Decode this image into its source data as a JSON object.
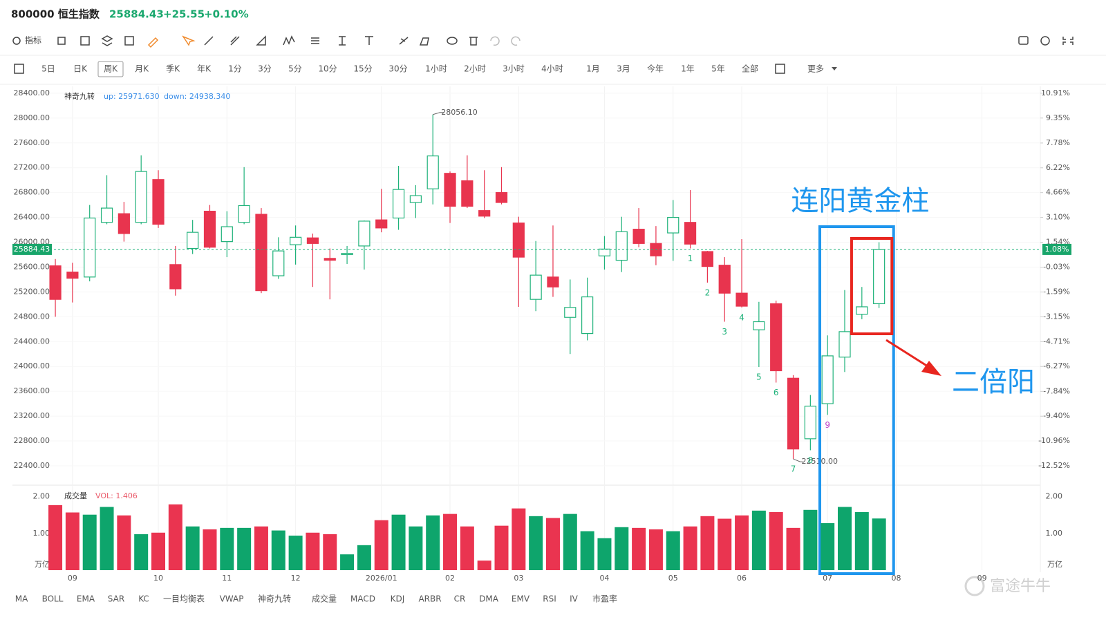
{
  "header": {
    "symbol": "800000 恒生指数",
    "price": "25884.43",
    "change": "+25.55",
    "change_pct": "+0.10%"
  },
  "toolbar": {
    "indicator_button": "指标"
  },
  "timeframes": [
    {
      "label": "5日"
    },
    {
      "label": "日K"
    },
    {
      "label": "周K",
      "active": true
    },
    {
      "label": "月K"
    },
    {
      "label": "季K"
    },
    {
      "label": "年K"
    },
    {
      "label": "1分"
    },
    {
      "label": "3分"
    },
    {
      "label": "5分"
    },
    {
      "label": "10分"
    },
    {
      "label": "15分"
    },
    {
      "label": "30分"
    },
    {
      "label": "1小时"
    },
    {
      "label": "2小时"
    },
    {
      "label": "3小时"
    },
    {
      "label": "4小时"
    },
    {
      "label": "1月"
    },
    {
      "label": "3月"
    },
    {
      "label": "今年"
    },
    {
      "label": "1年"
    },
    {
      "label": "5年"
    },
    {
      "label": "全部"
    }
  ],
  "more_button": "更多",
  "indicators": [
    {
      "label": "MA"
    },
    {
      "label": "BOLL"
    },
    {
      "label": "EMA"
    },
    {
      "label": "SAR"
    },
    {
      "label": "KC"
    },
    {
      "label": "一目均衡表"
    },
    {
      "label": "VWAP"
    },
    {
      "label": "神奇九转",
      "active": true
    },
    {
      "label": "成交量",
      "active": true
    },
    {
      "label": "MACD"
    },
    {
      "label": "KDJ"
    },
    {
      "label": "ARBR"
    },
    {
      "label": "CR"
    },
    {
      "label": "DMA"
    },
    {
      "label": "EMV"
    },
    {
      "label": "RSI"
    },
    {
      "label": "IV"
    },
    {
      "label": "市盈率"
    }
  ],
  "watermark": "富途牛牛",
  "chart_data": [
    {
      "type": "candlestick",
      "indicator_name": "神奇九转",
      "indicator_values": [
        "up: 25971.630",
        "down: 24938.340"
      ],
      "open": [
        25620,
        25520,
        25440,
        26320,
        26460,
        26320,
        27010,
        25640,
        25900,
        26500,
        26010,
        26320,
        26450,
        25460,
        25960,
        26070,
        25740,
        25800,
        25940,
        26360,
        26390,
        26640,
        26860,
        27110,
        26990,
        26510,
        26800,
        26310,
        25080,
        25440,
        24790,
        24530,
        25780,
        25710,
        26210,
        25980,
        26150,
        26320,
        25850,
        25630,
        25180,
        24590,
        25010,
        23810,
        22835,
        23400,
        24150,
        24840,
        25010
      ],
      "high": [
        25730,
        25670,
        26600,
        27080,
        26650,
        27400,
        27160,
        25940,
        26360,
        26600,
        26500,
        27210,
        26550,
        26080,
        26270,
        26140,
        25900,
        25940,
        26350,
        26860,
        27230,
        26920,
        28056.1,
        27140,
        27400,
        27160,
        27210,
        26410,
        26020,
        26270,
        25400,
        25430,
        26100,
        26410,
        26550,
        26260,
        26680,
        26840,
        25860,
        25760,
        26050,
        25040,
        25060,
        23860,
        23540,
        24500,
        25230,
        25280,
        26000
      ],
      "low": [
        24800,
        25030,
        25370,
        26290,
        26010,
        26290,
        26230,
        25140,
        25810,
        25900,
        25760,
        26290,
        25180,
        25410,
        25640,
        25280,
        25080,
        25650,
        25560,
        26160,
        26200,
        26390,
        26610,
        26310,
        26550,
        26390,
        26610,
        24960,
        24890,
        25120,
        24200,
        24420,
        25560,
        25520,
        25920,
        25630,
        25700,
        25900,
        25350,
        24720,
        24950,
        23990,
        23740,
        22510,
        22650,
        23220,
        23910,
        24760,
        24940
      ],
      "close": [
        25080,
        25420,
        26390,
        26550,
        26140,
        27140,
        26290,
        25250,
        26160,
        25920,
        26250,
        26590,
        25220,
        25860,
        26080,
        25980,
        25710,
        25820,
        26340,
        26230,
        26850,
        26750,
        27390,
        26580,
        26580,
        26420,
        26640,
        25760,
        25470,
        25280,
        24950,
        25120,
        25890,
        26170,
        25980,
        25780,
        26400,
        25970,
        25610,
        25180,
        24970,
        24720,
        23930,
        22670,
        23360,
        24170,
        24560,
        24960,
        25884.43
      ],
      "up_color": "#1fb27a",
      "down_color": "#e8344e",
      "xlim": [
        -2.5,
        57.4
      ],
      "ylim": [
        22110,
        28510
      ],
      "yticks": [
        {
          "value": 28400,
          "label": "28400.00"
        },
        {
          "value": 28000,
          "label": "28000.00"
        },
        {
          "value": 27600,
          "label": "27600.00"
        },
        {
          "value": 27200,
          "label": "27200.00"
        },
        {
          "value": 26800,
          "label": "26800.00"
        },
        {
          "value": 26400,
          "label": "26400.00"
        },
        {
          "value": 26000,
          "label": "26000.00"
        },
        {
          "value": 25600,
          "label": "25600.00"
        },
        {
          "value": 25200,
          "label": "25200.00"
        },
        {
          "value": 24800,
          "label": "24800.00"
        },
        {
          "value": 24400,
          "label": "24400.00"
        },
        {
          "value": 24000,
          "label": "24000.00"
        },
        {
          "value": 23600,
          "label": "23600.00"
        },
        {
          "value": 23200,
          "label": "23200.00"
        },
        {
          "value": 22800,
          "label": "22800.00"
        },
        {
          "value": 22400,
          "label": "22400.00"
        }
      ],
      "y2lim": [
        -13.65,
        11.34
      ],
      "y2ticks": [
        {
          "value": 10.91,
          "label": "10.91%"
        },
        {
          "value": 9.35,
          "label": "9.35%"
        },
        {
          "value": 7.78,
          "label": "7.78%"
        },
        {
          "value": 6.22,
          "label": "6.22%"
        },
        {
          "value": 4.66,
          "label": "4.66%"
        },
        {
          "value": 3.1,
          "label": "3.10%"
        },
        {
          "value": 1.54,
          "label": "1.54%"
        },
        {
          "value": -0.03,
          "label": "-0.03%"
        },
        {
          "value": -1.59,
          "label": "-1.59%"
        },
        {
          "value": -3.15,
          "label": "-3.15%"
        },
        {
          "value": -4.71,
          "label": "-4.71%"
        },
        {
          "value": -6.27,
          "label": "-6.27%"
        },
        {
          "value": -7.84,
          "label": "-7.84%"
        },
        {
          "value": -9.4,
          "label": "-9.40%"
        },
        {
          "value": -10.96,
          "label": "-10.96%"
        },
        {
          "value": -12.52,
          "label": "-12.52%"
        }
      ],
      "grid": true,
      "last_price_label": "25884.43",
      "last_pct_label": "1.08%",
      "high_label": "28056.10",
      "low_label": "22510.00",
      "nine_turn": {
        "labels": [
          "1",
          "2",
          "3",
          "4",
          "5",
          "6",
          "7",
          "8",
          "9"
        ],
        "color": "#1fb27a",
        "final_color": "#c040c8"
      },
      "annotations": {
        "golden_bars": "连阳黄金柱",
        "double_yang": "二倍阳"
      }
    },
    {
      "type": "bar",
      "title": "成交量",
      "value_label": "VOL: 1.406",
      "values": [
        1.77,
        1.57,
        1.51,
        1.72,
        1.49,
        0.98,
        1.02,
        1.79,
        1.19,
        1.11,
        1.15,
        1.15,
        1.19,
        1.08,
        0.94,
        1.02,
        0.98,
        0.43,
        0.68,
        1.36,
        1.51,
        1.19,
        1.49,
        1.53,
        1.19,
        0.26,
        1.21,
        1.68,
        1.47,
        1.42,
        1.53,
        1.06,
        0.87,
        1.17,
        1.15,
        1.11,
        1.06,
        1.19,
        1.47,
        1.4,
        1.49,
        1.62,
        1.58,
        1.15,
        1.64,
        1.28,
        1.72,
        1.58,
        1.406
      ],
      "up_color": "#0ea56c",
      "down_color": "#ea3450",
      "ylim": [
        0,
        2.2
      ],
      "yticks": [
        {
          "value": 2,
          "label": "2.00"
        },
        {
          "value": 1,
          "label": "1.00"
        }
      ],
      "unit_label": "万亿",
      "xlim": [
        -2.5,
        57.4
      ],
      "xticks": [
        {
          "value": 1,
          "label": "09"
        },
        {
          "value": 6,
          "label": "10"
        },
        {
          "value": 10,
          "label": "11"
        },
        {
          "value": 14,
          "label": "12"
        },
        {
          "value": 19,
          "label": "2026/01"
        },
        {
          "value": 23,
          "label": "02"
        },
        {
          "value": 27,
          "label": "03"
        },
        {
          "value": 32,
          "label": "04"
        },
        {
          "value": 36,
          "label": "05"
        },
        {
          "value": 40,
          "label": "06"
        },
        {
          "value": 45,
          "label": "07"
        },
        {
          "value": 49,
          "label": "08"
        },
        {
          "value": 54,
          "label": "09"
        }
      ]
    }
  ]
}
